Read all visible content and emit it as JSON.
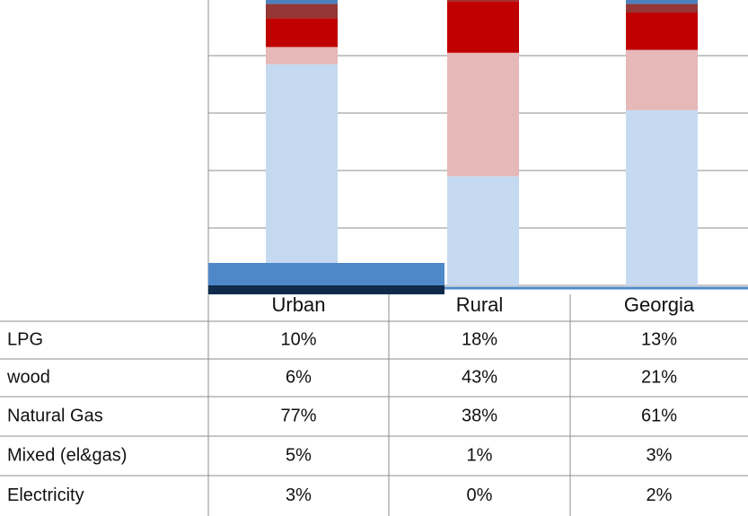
{
  "chart_data": {
    "type": "bar",
    "stacked": true,
    "categories": [
      "Urban",
      "Rural",
      "Georgia"
    ],
    "series": [
      {
        "name": "LPG",
        "color": "#c00000",
        "values": [
          10,
          18,
          13
        ],
        "value_labels": [
          "10%",
          "18%",
          "13%"
        ]
      },
      {
        "name": "wood",
        "color": "#e6b8b7",
        "values": [
          6,
          43,
          21
        ],
        "value_labels": [
          "6%",
          "43%",
          "21%"
        ]
      },
      {
        "name": "Natural Gas",
        "color": "#c5d9f1",
        "values": [
          77,
          38,
          61
        ],
        "value_labels": [
          "77%",
          "38%",
          "61%"
        ]
      },
      {
        "name": "Mixed (el&gas)",
        "color": "#953735",
        "values": [
          5,
          1,
          3
        ],
        "value_labels": [
          "5%",
          "1%",
          "3%"
        ]
      },
      {
        "name": "Electricity",
        "color": "#4f81bd",
        "values": [
          3,
          0,
          2
        ],
        "value_labels": [
          "3%",
          "0%",
          "2%"
        ]
      }
    ],
    "stack_order": [
      "Natural Gas",
      "wood",
      "LPG",
      "Mixed (el&gas)",
      "Electricity"
    ],
    "ylim": [
      0,
      100
    ],
    "yticks": [
      0,
      20,
      40,
      60,
      80,
      100
    ],
    "grid": true
  }
}
